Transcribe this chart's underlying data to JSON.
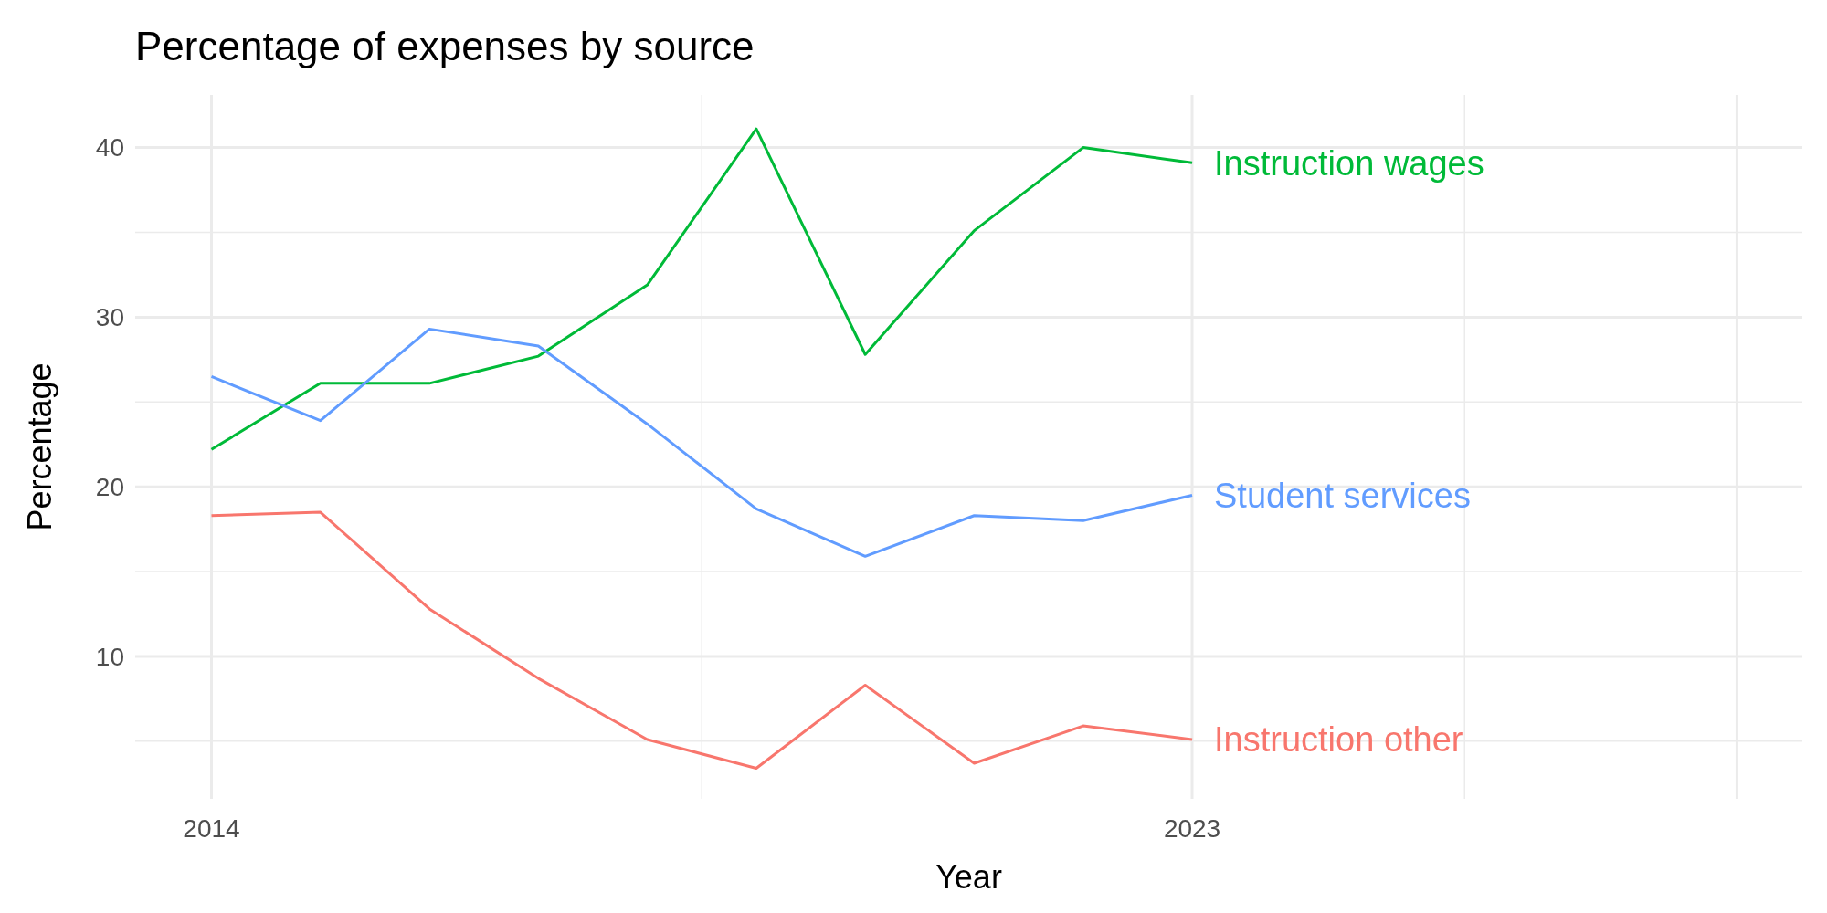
{
  "chart_data": {
    "type": "line",
    "title": "Percentage of expenses by source",
    "xlabel": "Year",
    "ylabel": "Percentage",
    "x": [
      2014,
      2015,
      2016,
      2017,
      2018,
      2019,
      2020,
      2021,
      2022,
      2023
    ],
    "series": [
      {
        "name": "Instruction wages",
        "color": "#00ba38",
        "values": [
          22.2,
          26.1,
          26.1,
          27.7,
          31.9,
          41.1,
          27.8,
          35.1,
          40.0,
          39.1
        ]
      },
      {
        "name": "Student services",
        "color": "#619cff",
        "values": [
          26.5,
          23.9,
          29.3,
          28.3,
          23.7,
          18.7,
          15.9,
          18.3,
          18.0,
          19.5
        ]
      },
      {
        "name": "Instruction other",
        "color": "#f8766d",
        "values": [
          18.3,
          18.5,
          12.8,
          8.7,
          5.1,
          3.4,
          8.3,
          3.7,
          5.9,
          5.1
        ]
      }
    ],
    "xlim": [
      2013.3,
      2028.6
    ],
    "xticks": [
      2014,
      2023,
      {
        "value": 2028,
        "label": null
      },
      {
        "value": 2018.5,
        "label": null
      },
      {
        "value": 2025.5,
        "label": null
      }
    ],
    "ylim": [
      1.6,
      43.1
    ],
    "yticks": [
      10,
      20,
      30,
      40,
      {
        "value": 5,
        "label": null
      },
      {
        "value": 15,
        "label": null
      },
      {
        "value": 25,
        "label": null
      },
      {
        "value": 35,
        "label": null
      }
    ],
    "grid": true,
    "legend": false,
    "marker": "none",
    "line_style": "solid"
  }
}
